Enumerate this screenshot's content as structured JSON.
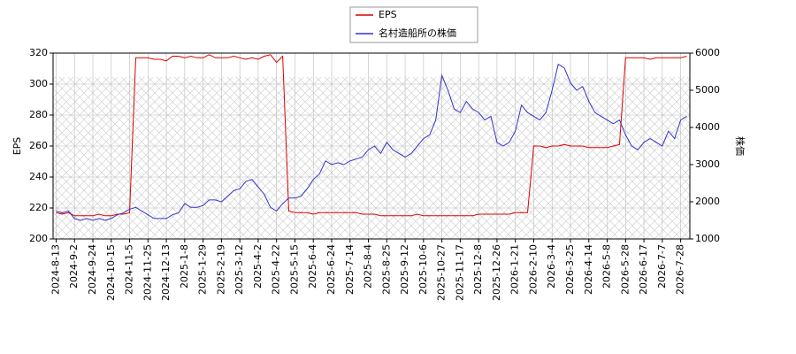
{
  "chart_data": {
    "type": "line",
    "categories": [
      "2024-8-13",
      null,
      null,
      "2024-9-2",
      null,
      null,
      "2024-9-24",
      null,
      null,
      "2024-10-15",
      null,
      null,
      "2024-11-5",
      null,
      null,
      "2024-11-25",
      null,
      null,
      "2024-12-13",
      null,
      null,
      "2025-1-8",
      null,
      null,
      "2025-1-29",
      null,
      null,
      "2025-2-19",
      null,
      null,
      "2025-3-12",
      null,
      null,
      "2025-4-2",
      null,
      null,
      "2025-4-22",
      null,
      null,
      "2025-5-15",
      null,
      null,
      "2025-6-4",
      null,
      null,
      "2025-6-24",
      null,
      null,
      "2025-7-14",
      null,
      null,
      "2025-8-4",
      null,
      null,
      "2025-8-25",
      null,
      null,
      "2025-9-12",
      null,
      null,
      "2025-10-6",
      null,
      null,
      "2025-10-27",
      null,
      null,
      "2025-11-17",
      null,
      null,
      "2025-12-8",
      null,
      null,
      "2025-12-26",
      null,
      null,
      "2026-1-21",
      null,
      null,
      "2026-2-10",
      null,
      null,
      "2026-3-4",
      null,
      null,
      "2026-3-25",
      null,
      null,
      "2026-4-14",
      null,
      null,
      "2026-5-8",
      null,
      null,
      "2026-5-28",
      null,
      null,
      "2026-6-17",
      null,
      null,
      "2026-7-7",
      null,
      null,
      "2026-7-28",
      null
    ],
    "series": [
      {
        "name": "EPS",
        "color": "#dd0000",
        "values": [
          217,
          216,
          217,
          215,
          215,
          215,
          215,
          216,
          215,
          215,
          216,
          216,
          217,
          317,
          317,
          317,
          316,
          316,
          315,
          318,
          318,
          317,
          318,
          317,
          317,
          319,
          317,
          317,
          317,
          318,
          317,
          316,
          317,
          316,
          318,
          319,
          314,
          318,
          218,
          217,
          217,
          217,
          216,
          217,
          217,
          217,
          217,
          217,
          217,
          217,
          216,
          216,
          216,
          215,
          215,
          215,
          215,
          215,
          215,
          216,
          215,
          215,
          215,
          215,
          215,
          215,
          215,
          215,
          215,
          216,
          216,
          216,
          216,
          216,
          216,
          217,
          217,
          217,
          260,
          260,
          259,
          260,
          260,
          261,
          260,
          260,
          260,
          259,
          259,
          259,
          259,
          260,
          261,
          317,
          317,
          317,
          317,
          316,
          317,
          317,
          317,
          317,
          317,
          318
        ]
      },
      {
        "name": "名村造船所の株価",
        "color": "#3333cc",
        "axis": "y2",
        "values": [
          1750,
          1700,
          1750,
          1550,
          1500,
          1550,
          1500,
          1550,
          1500,
          1550,
          1650,
          1700,
          1800,
          1850,
          1750,
          1650,
          1550,
          1550,
          1550,
          1650,
          1700,
          1950,
          1850,
          1850,
          1900,
          2050,
          2050,
          2000,
          2150,
          2300,
          2350,
          2550,
          2600,
          2400,
          2200,
          1850,
          1750,
          1950,
          2100,
          2100,
          2150,
          2350,
          2600,
          2750,
          3100,
          3000,
          3050,
          3000,
          3100,
          3150,
          3200,
          3400,
          3500,
          3300,
          3600,
          3400,
          3300,
          3200,
          3300,
          3500,
          3700,
          3800,
          4200,
          5400,
          5000,
          4500,
          4400,
          4700,
          4500,
          4400,
          4200,
          4300,
          3600,
          3500,
          3600,
          3900,
          4600,
          4400,
          4300,
          4200,
          4400,
          5000,
          5700,
          5600,
          5200,
          5000,
          5100,
          4700,
          4400,
          4300,
          4200,
          4100,
          4200,
          3800,
          3500,
          3400,
          3600,
          3700,
          3600,
          3500,
          3900,
          3700,
          4200,
          4300
        ]
      }
    ],
    "y_label": "EPS",
    "y2_label": "株価",
    "ylim": [
      200,
      320
    ],
    "yticks": [
      200,
      220,
      240,
      260,
      280,
      300,
      320
    ],
    "y2lim": [
      1000,
      6000
    ],
    "y2ticks": [
      1000,
      2000,
      3000,
      4000,
      5000,
      6000
    ],
    "grid": true,
    "legend": "top"
  }
}
